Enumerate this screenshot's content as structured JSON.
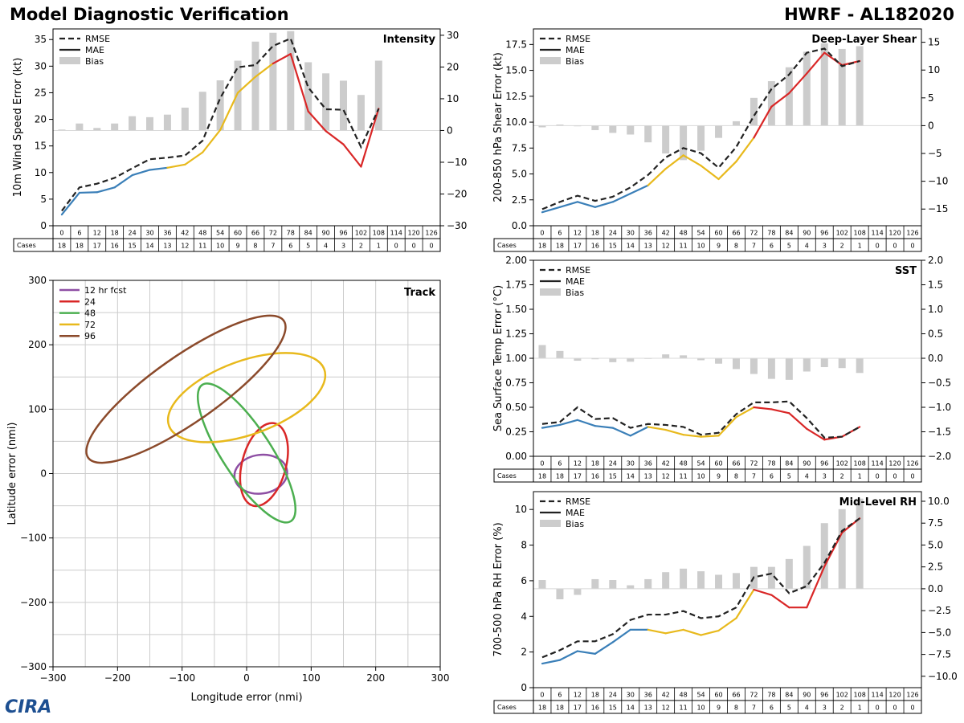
{
  "header": {
    "title_left": "Model Diagnostic Verification",
    "title_right": "HWRF - AL182020",
    "logo_text": "CIRA"
  },
  "legend_labels": {
    "rmse": "RMSE",
    "mae": "MAE",
    "bias": "Bias"
  },
  "colors": {
    "rmse": "#222222",
    "bias": "#cccccc",
    "blue": "#3a7fb8",
    "yellow": "#e8b91c",
    "red": "#d92727",
    "grid": "#cccccc",
    "purple": "#8e4fa4",
    "green": "#4caf50",
    "brown": "#8b4a2b"
  },
  "lead_times": [
    "0",
    "6",
    "12",
    "18",
    "24",
    "30",
    "36",
    "42",
    "48",
    "54",
    "60",
    "66",
    "72",
    "78",
    "84",
    "90",
    "96",
    "102",
    "108",
    "114",
    "120",
    "126"
  ],
  "cases_label": "Cases",
  "cases": [
    18,
    18,
    17,
    16,
    15,
    14,
    13,
    12,
    11,
    10,
    9,
    8,
    7,
    6,
    5,
    4,
    3,
    2,
    1,
    0,
    0,
    0
  ],
  "chart_data": [
    {
      "id": "intensity",
      "type": "line",
      "title": "Intensity",
      "ylabel": "10m Wind Speed Error (kt)",
      "xlabel": "",
      "ylim": [
        0,
        37
      ],
      "yticks": [
        "0",
        "5",
        "10",
        "15",
        "20",
        "25",
        "30",
        "35"
      ],
      "ytick_values": [
        0,
        5,
        10,
        15,
        20,
        25,
        30,
        35
      ],
      "y2lim": [
        -30,
        32
      ],
      "y2ticks": [
        "−30",
        "−20",
        "−10",
        "0",
        "10",
        "20",
        "30"
      ],
      "y2tick_values": [
        -30,
        -20,
        -10,
        0,
        10,
        20,
        30
      ],
      "rmse": [
        2.8,
        7.2,
        7.9,
        9.0,
        10.8,
        12.5,
        12.8,
        13.2,
        16.0,
        24.0,
        29.8,
        30.2,
        33.8,
        35.2,
        26.0,
        21.9,
        21.8,
        14.8,
        22.0,
        null,
        null,
        null
      ],
      "mae": [
        2.1,
        6.2,
        6.3,
        7.2,
        9.5,
        10.5,
        10.9,
        11.5,
        13.8,
        18.0,
        25.0,
        28.0,
        30.5,
        32.3,
        21.5,
        17.8,
        15.3,
        11.1,
        22.0,
        null,
        null,
        null
      ],
      "bias": [
        0.3,
        2.2,
        0.8,
        2.2,
        4.5,
        4.2,
        5.0,
        7.2,
        12.2,
        15.8,
        22.0,
        28.0,
        30.8,
        31.3,
        21.5,
        18.0,
        15.7,
        11.2,
        22.0,
        null,
        null,
        null
      ]
    },
    {
      "id": "shear",
      "type": "line",
      "title": "Deep-Layer Shear",
      "ylabel": "200-850 hPa Shear Error (kt)",
      "xlabel": "",
      "ylim": [
        0,
        19
      ],
      "yticks": [
        "0.0",
        "2.5",
        "5.0",
        "7.5",
        "10.0",
        "12.5",
        "15.0",
        "17.5"
      ],
      "ytick_values": [
        0,
        2.5,
        5,
        7.5,
        10,
        12.5,
        15,
        17.5
      ],
      "y2lim": [
        -18,
        17.4
      ],
      "y2ticks": [
        "−15",
        "−10",
        "−5",
        "0",
        "5",
        "10",
        "15"
      ],
      "y2tick_values": [
        -15,
        -10,
        -5,
        0,
        5,
        10,
        15
      ],
      "rmse": [
        1.6,
        2.3,
        2.9,
        2.4,
        2.8,
        3.7,
        4.9,
        6.6,
        7.5,
        7.0,
        5.6,
        7.6,
        10.6,
        13.2,
        14.6,
        16.7,
        17.1,
        15.4,
        15.9,
        null,
        null,
        null
      ],
      "mae": [
        1.3,
        1.8,
        2.3,
        1.8,
        2.3,
        3.1,
        3.9,
        5.5,
        6.8,
        5.8,
        4.5,
        6.2,
        8.5,
        11.5,
        12.8,
        14.7,
        16.7,
        15.5,
        15.9,
        null,
        null,
        null
      ],
      "bias": [
        -0.3,
        0.2,
        -0.1,
        -0.8,
        -1.3,
        -1.6,
        -3.0,
        -5.0,
        -6.2,
        -4.5,
        -2.2,
        0.8,
        5.0,
        8.0,
        10.5,
        13.3,
        14.8,
        13.8,
        14.3,
        null,
        null,
        null
      ]
    },
    {
      "id": "sst",
      "type": "line",
      "title": "SST",
      "ylabel": "Sea Surface Temp Error (°C)",
      "xlabel": "",
      "ylim": [
        0,
        2
      ],
      "yticks": [
        "0.00",
        "0.25",
        "0.50",
        "0.75",
        "1.00",
        "1.25",
        "1.50",
        "1.75",
        "2.00"
      ],
      "ytick_values": [
        0,
        0.25,
        0.5,
        0.75,
        1,
        1.25,
        1.5,
        1.75,
        2
      ],
      "y2lim": [
        -2,
        2
      ],
      "y2ticks": [
        "−2.0",
        "−1.5",
        "−1.0",
        "−0.5",
        "0.0",
        "0.5",
        "1.0",
        "1.5",
        "2.0"
      ],
      "y2tick_values": [
        -2,
        -1.5,
        -1,
        -0.5,
        0,
        0.5,
        1,
        1.5,
        2
      ],
      "rmse": [
        0.33,
        0.35,
        0.5,
        0.38,
        0.39,
        0.29,
        0.33,
        0.32,
        0.3,
        0.22,
        0.24,
        0.43,
        0.55,
        0.55,
        0.56,
        0.39,
        0.19,
        0.2,
        0.3,
        null,
        null,
        null
      ],
      "mae": [
        0.29,
        0.32,
        0.37,
        0.31,
        0.29,
        0.21,
        0.3,
        0.27,
        0.22,
        0.2,
        0.21,
        0.4,
        0.5,
        0.48,
        0.44,
        0.28,
        0.17,
        0.2,
        0.3,
        null,
        null,
        null
      ],
      "bias": [
        0.27,
        0.15,
        -0.05,
        -0.02,
        -0.08,
        -0.07,
        -0.01,
        0.08,
        0.06,
        -0.04,
        -0.11,
        -0.22,
        -0.32,
        -0.42,
        -0.44,
        -0.27,
        -0.18,
        -0.2,
        -0.3,
        null,
        null,
        null
      ]
    },
    {
      "id": "rh",
      "type": "line",
      "title": "Mid-Level RH",
      "ylabel": "700-500 hPa RH Error (%)",
      "xlabel": "",
      "ylim": [
        0,
        11
      ],
      "yticks": [
        "0",
        "2",
        "4",
        "6",
        "8",
        "10"
      ],
      "ytick_values": [
        0,
        2,
        4,
        6,
        8,
        10
      ],
      "y2lim": [
        -11.3,
        11.1
      ],
      "y2ticks": [
        "−10.0",
        "−7.5",
        "−5.0",
        "−2.5",
        "0.0",
        "2.5",
        "5.0",
        "7.5",
        "10.0"
      ],
      "y2tick_values": [
        -10,
        -7.5,
        -5,
        -2.5,
        0,
        2.5,
        5,
        7.5,
        10
      ],
      "rmse": [
        1.7,
        2.1,
        2.6,
        2.6,
        3.0,
        3.8,
        4.1,
        4.1,
        4.3,
        3.9,
        4.0,
        4.5,
        6.2,
        6.4,
        5.3,
        5.7,
        7.0,
        8.8,
        9.5,
        null,
        null,
        null
      ],
      "mae": [
        1.35,
        1.55,
        2.05,
        1.9,
        2.55,
        3.25,
        3.25,
        3.05,
        3.25,
        2.95,
        3.2,
        3.9,
        5.5,
        5.2,
        4.5,
        4.5,
        6.8,
        8.7,
        9.5,
        null,
        null,
        null
      ],
      "bias": [
        1.0,
        -1.2,
        -0.7,
        1.1,
        1.0,
        0.4,
        1.1,
        1.9,
        2.3,
        2.0,
        1.6,
        1.8,
        2.5,
        2.5,
        3.4,
        4.9,
        7.5,
        9.1,
        10.3,
        null,
        null,
        null
      ]
    },
    {
      "id": "track",
      "type": "scatter",
      "title": "Track",
      "xlabel": "Longitude error (nmi)",
      "ylabel": "Latitude error (nmi)",
      "xlim": [
        -300,
        300
      ],
      "ylim": [
        -300,
        300
      ],
      "xticks": [
        "−300",
        "−200",
        "−100",
        "0",
        "100",
        "200",
        "300"
      ],
      "xtick_values": [
        -300,
        -200,
        -100,
        0,
        100,
        200,
        300
      ],
      "yticks": [
        "−300",
        "−200",
        "−100",
        "0",
        "100",
        "200",
        "300"
      ],
      "ytick_values": [
        -300,
        -200,
        -100,
        0,
        100,
        200,
        300
      ],
      "grid_x": [
        -250,
        -200,
        -150,
        -100,
        -50,
        0,
        50,
        100,
        150,
        200,
        250
      ],
      "grid_y": [
        -250,
        -200,
        -150,
        -100,
        -50,
        0,
        50,
        100,
        150,
        200,
        250
      ],
      "ellipses": [
        {
          "label": "12 hr fcst",
          "color": "#8e4fa4",
          "cx": 22,
          "cy": -1,
          "rx": 41,
          "ry": 30,
          "angle": 8
        },
        {
          "label": "24",
          "color": "#d92727",
          "cx": 27,
          "cy": 14,
          "rx": 66,
          "ry": 34,
          "angle": 75
        },
        {
          "label": "48",
          "color": "#4caf50",
          "cx": 0,
          "cy": 32,
          "rx": 126,
          "ry": 38,
          "angle": -57
        },
        {
          "label": "72",
          "color": "#e8b91c",
          "cx": 0,
          "cy": 118,
          "rx": 128,
          "ry": 57,
          "angle": 20
        },
        {
          "label": "96",
          "color": "#8b4a2b",
          "cx": -94,
          "cy": 131,
          "rx": 185,
          "ry": 51,
          "angle": 35
        }
      ]
    }
  ]
}
